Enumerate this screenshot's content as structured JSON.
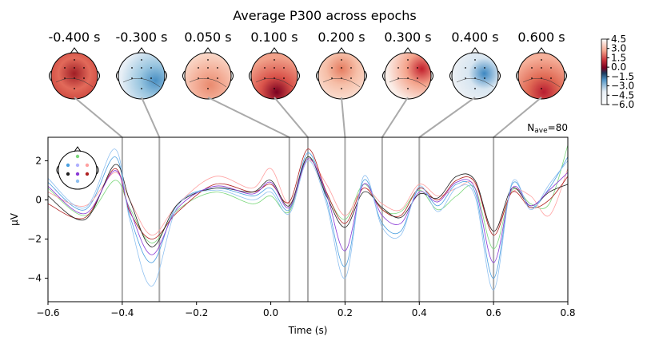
{
  "chart_data": {
    "type": "line",
    "title": "Average P300 across epochs",
    "xlabel": "Time (s)",
    "ylabel": "µV",
    "xlim": [
      -0.6,
      0.8
    ],
    "ylim": [
      -5.2,
      3.2
    ],
    "x_ticks": [
      "−0.6",
      "−0.4",
      "−0.2",
      "0.0",
      "0.2",
      "0.4",
      "0.6",
      "0.8"
    ],
    "x_tick_values": [
      -0.6,
      -0.4,
      -0.2,
      0.0,
      0.2,
      0.4,
      0.6,
      0.8
    ],
    "y_ticks": [
      "−4",
      "−2",
      "0",
      "2"
    ],
    "y_tick_values": [
      -4,
      -2,
      0,
      2
    ],
    "nave": {
      "prefix": "N",
      "sub": "ave",
      "suffix": "=80"
    },
    "grid": false,
    "topomap_times": [
      -0.4,
      -0.3,
      0.05,
      0.1,
      0.2,
      0.3,
      0.4,
      0.6
    ],
    "topomap_labels": [
      "-0.400 s",
      "-0.300 s",
      "0.050 s",
      "0.100 s",
      "0.200 s",
      "0.300 s",
      "0.400 s",
      "0.600 s"
    ],
    "colorbar": {
      "ticks": [
        "4.5",
        "3.0",
        "1.5",
        "0.0",
        "−1.5",
        "−3.0",
        "−4.5",
        "−6.0"
      ],
      "tick_values": [
        4.5,
        3.0,
        1.5,
        0.0,
        -1.5,
        -3.0,
        -4.5,
        -6.0
      ],
      "range": [
        -6.0,
        4.5
      ],
      "colormap": "RdBu_r"
    },
    "series": [
      {
        "color": "#7dd87d",
        "x": [
          -0.6,
          -0.5,
          -0.42,
          -0.38,
          -0.32,
          -0.25,
          -0.15,
          -0.05,
          0.0,
          0.05,
          0.1,
          0.15,
          0.2,
          0.25,
          0.3,
          0.35,
          0.4,
          0.45,
          0.5,
          0.55,
          0.6,
          0.65,
          0.7,
          0.75,
          0.8
        ],
        "y": [
          0.6,
          -0.8,
          1.0,
          -0.4,
          -2.2,
          -0.5,
          0.4,
          -0.2,
          0.2,
          -0.6,
          2.2,
          0.3,
          -1.0,
          0.8,
          -0.5,
          -0.6,
          0.5,
          -0.5,
          0.2,
          0.6,
          -2.5,
          0.5,
          -0.2,
          -0.2,
          2.8
        ]
      },
      {
        "color": "#4a9fe0",
        "x": [
          -0.6,
          -0.5,
          -0.42,
          -0.38,
          -0.32,
          -0.25,
          -0.15,
          -0.05,
          0.0,
          0.05,
          0.1,
          0.15,
          0.2,
          0.25,
          0.3,
          0.35,
          0.4,
          0.45,
          0.5,
          0.55,
          0.6,
          0.65,
          0.7,
          0.75,
          0.8
        ],
        "y": [
          0.9,
          -0.5,
          2.2,
          -0.8,
          -3.2,
          -0.2,
          0.6,
          0.2,
          0.6,
          -0.5,
          2.4,
          0.0,
          -3.4,
          1.0,
          -1.2,
          -1.6,
          0.6,
          -0.3,
          0.8,
          0.4,
          -4.0,
          0.8,
          -0.4,
          0.6,
          2.2
        ]
      },
      {
        "color": "#ffa0a0",
        "x": [
          -0.6,
          -0.5,
          -0.42,
          -0.38,
          -0.32,
          -0.25,
          -0.15,
          -0.05,
          0.0,
          0.05,
          0.1,
          0.15,
          0.2,
          0.25,
          0.3,
          0.35,
          0.4,
          0.45,
          0.5,
          0.55,
          0.6,
          0.65,
          0.7,
          0.75,
          0.8
        ],
        "y": [
          0.4,
          -0.3,
          1.4,
          0.0,
          -1.8,
          -0.2,
          1.2,
          0.6,
          1.6,
          -0.2,
          2.0,
          0.8,
          -0.8,
          0.6,
          -0.2,
          -0.5,
          0.8,
          0.2,
          0.6,
          0.8,
          -1.6,
          0.4,
          0.2,
          -0.8,
          1.6
        ]
      },
      {
        "color": "#b02020",
        "x": [
          -0.6,
          -0.5,
          -0.42,
          -0.38,
          -0.32,
          -0.25,
          -0.15,
          -0.05,
          0.0,
          0.05,
          0.1,
          0.15,
          0.2,
          0.25,
          0.3,
          0.35,
          0.4,
          0.45,
          0.5,
          0.55,
          0.6,
          0.65,
          0.7,
          0.75,
          0.8
        ],
        "y": [
          -0.2,
          -0.9,
          1.6,
          -0.6,
          -2.0,
          -0.6,
          0.8,
          0.4,
          0.8,
          -0.1,
          2.6,
          0.4,
          -1.2,
          0.6,
          -0.5,
          -0.8,
          0.6,
          0.0,
          1.0,
          0.9,
          -1.8,
          0.4,
          -0.4,
          0.0,
          1.2
        ]
      },
      {
        "color": "#202020",
        "x": [
          -0.6,
          -0.5,
          -0.42,
          -0.38,
          -0.32,
          -0.25,
          -0.15,
          -0.05,
          0.0,
          0.05,
          0.1,
          0.15,
          0.2,
          0.25,
          0.3,
          0.35,
          0.4,
          0.45,
          0.5,
          0.55,
          0.6,
          0.65,
          0.7,
          0.75,
          0.8
        ],
        "y": [
          0.2,
          -1.0,
          1.8,
          0.0,
          -2.4,
          -0.2,
          0.6,
          0.4,
          1.0,
          -0.3,
          2.2,
          0.2,
          -1.4,
          0.4,
          -0.4,
          -0.9,
          0.3,
          0.1,
          1.2,
          1.0,
          -1.6,
          0.6,
          -0.3,
          0.4,
          0.8
        ]
      },
      {
        "color": "#8a3ad6",
        "x": [
          -0.6,
          -0.5,
          -0.42,
          -0.38,
          -0.32,
          -0.25,
          -0.15,
          -0.05,
          0.0,
          0.05,
          0.1,
          0.15,
          0.2,
          0.25,
          0.3,
          0.35,
          0.4,
          0.45,
          0.5,
          0.55,
          0.6,
          0.65,
          0.7,
          0.75,
          0.8
        ],
        "y": [
          0.7,
          -0.7,
          1.5,
          -0.5,
          -2.8,
          -0.4,
          0.7,
          0.3,
          0.9,
          -0.4,
          2.1,
          0.3,
          -2.6,
          0.8,
          -0.8,
          -1.2,
          0.4,
          -0.1,
          0.9,
          0.6,
          -3.2,
          0.6,
          -0.3,
          0.5,
          1.4
        ]
      },
      {
        "color": "#8fc0f0",
        "x": [
          -0.6,
          -0.5,
          -0.42,
          -0.38,
          -0.32,
          -0.25,
          -0.15,
          -0.05,
          0.0,
          0.05,
          0.1,
          0.15,
          0.2,
          0.25,
          0.3,
          0.35,
          0.4,
          0.45,
          0.5,
          0.55,
          0.6,
          0.65,
          0.7,
          0.75,
          0.8
        ],
        "y": [
          1.1,
          -0.4,
          2.6,
          -1.0,
          -4.4,
          -0.3,
          0.5,
          0.0,
          0.4,
          -0.7,
          2.0,
          -0.2,
          -4.0,
          1.2,
          -1.4,
          -1.8,
          0.7,
          -0.6,
          0.6,
          0.2,
          -4.6,
          0.9,
          -0.5,
          0.8,
          2.0
        ]
      }
    ]
  }
}
